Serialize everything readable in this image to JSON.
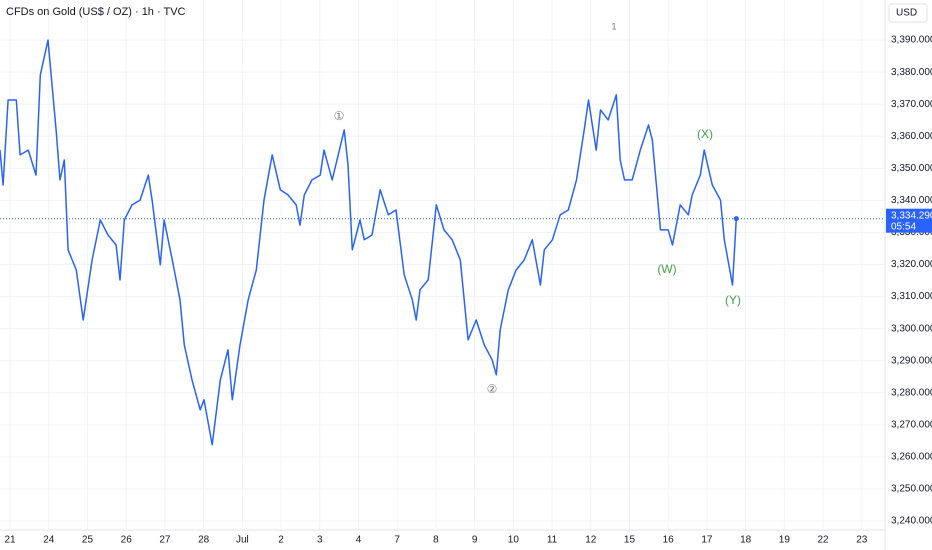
{
  "chart_data": {
    "type": "line",
    "title": "CFDs on Gold (US$ / OZ) · 1h · TVC",
    "currency": "USD",
    "color": "#2962ff",
    "annotation_color": "#43a047",
    "grid": true,
    "annotations": [
      "①",
      "1",
      "②",
      "(X)",
      "(W)",
      "(Y)"
    ],
    "last_price": {
      "value": 3334.29,
      "label": "3,334.290"
    },
    "countdown": "05:54",
    "xlim": [
      -0.26,
      22.6
    ],
    "ylim": [
      3237.2,
      3402.5
    ],
    "xticks": [
      {
        "value": 0,
        "label": "21"
      },
      {
        "value": 1,
        "label": "24"
      },
      {
        "value": 2,
        "label": "25"
      },
      {
        "value": 3,
        "label": "26"
      },
      {
        "value": 4,
        "label": "27"
      },
      {
        "value": 5,
        "label": "28"
      },
      {
        "value": 6,
        "label": "Jul"
      },
      {
        "value": 7,
        "label": "2"
      },
      {
        "value": 8,
        "label": "3"
      },
      {
        "value": 9,
        "label": "4"
      },
      {
        "value": 10,
        "label": "7"
      },
      {
        "value": 11,
        "label": "8"
      },
      {
        "value": 12,
        "label": "9"
      },
      {
        "value": 13,
        "label": "10"
      },
      {
        "value": 14,
        "label": "11"
      },
      {
        "value": 15,
        "label": "12"
      },
      {
        "value": 16,
        "label": "15"
      },
      {
        "value": 17,
        "label": "16"
      },
      {
        "value": 18,
        "label": "17"
      },
      {
        "value": 19,
        "label": "18"
      },
      {
        "value": 20,
        "label": "19"
      },
      {
        "value": 21,
        "label": "22"
      },
      {
        "value": 22,
        "label": "23"
      }
    ],
    "yticks": [
      {
        "value": 3240,
        "label": "3,240.000"
      },
      {
        "value": 3250,
        "label": "3,250.000"
      },
      {
        "value": 3260,
        "label": "3,260.000"
      },
      {
        "value": 3270,
        "label": "3,270.000"
      },
      {
        "value": 3280,
        "label": "3,280.000"
      },
      {
        "value": 3290,
        "label": "3,290.000"
      },
      {
        "value": 3300,
        "label": "3,300.000"
      },
      {
        "value": 3310,
        "label": "3,310.000"
      },
      {
        "value": 3320,
        "label": "3,320.000"
      },
      {
        "value": 3330,
        "label": "3,330.000"
      },
      {
        "value": 3340,
        "label": "3,340.000"
      },
      {
        "value": 3350,
        "label": "3,350.000"
      },
      {
        "value": 3360,
        "label": "3,360.000"
      },
      {
        "value": 3370,
        "label": "3,370.000"
      },
      {
        "value": 3380,
        "label": "3,380.000"
      },
      {
        "value": 3390,
        "label": "3,390.000"
      }
    ],
    "x": [
      -0.26,
      -0.18,
      -0.05,
      0.16,
      0.26,
      0.47,
      0.67,
      0.78,
      0.98,
      1.19,
      1.29,
      1.4,
      1.5,
      1.71,
      1.89,
      2.12,
      2.33,
      2.53,
      2.74,
      2.84,
      2.95,
      3.15,
      3.36,
      3.57,
      3.67,
      3.88,
      3.98,
      4.19,
      4.39,
      4.5,
      4.7,
      4.91,
      5.01,
      5.22,
      5.43,
      5.63,
      5.74,
      5.94,
      6.15,
      6.36,
      6.56,
      6.77,
      6.98,
      7.18,
      7.39,
      7.49,
      7.6,
      7.8,
      8.01,
      8.11,
      8.32,
      8.63,
      8.73,
      8.84,
      9.04,
      9.15,
      9.35,
      9.56,
      9.77,
      9.97,
      10.18,
      10.39,
      10.49,
      10.59,
      10.8,
      11.01,
      11.21,
      11.42,
      11.63,
      11.83,
      12.04,
      12.25,
      12.45,
      12.56,
      12.66,
      12.87,
      13.07,
      13.28,
      13.49,
      13.7,
      13.8,
      14.01,
      14.21,
      14.42,
      14.63,
      14.83,
      14.94,
      15.14,
      15.25,
      15.45,
      15.66,
      15.76,
      15.87,
      16.07,
      16.28,
      16.49,
      16.59,
      16.8,
      17.0,
      17.11,
      17.31,
      17.52,
      17.62,
      17.83,
      17.93,
      18.14,
      18.35,
      18.45,
      18.66,
      18.76
    ],
    "values": [
      3355.7,
      3344.8,
      3371.3,
      3371.3,
      3354.2,
      3355.7,
      3347.9,
      3379.1,
      3390.0,
      3362.0,
      3346.4,
      3352.6,
      3324.6,
      3318.3,
      3302.7,
      3321.4,
      3333.9,
      3329.2,
      3326.1,
      3315.2,
      3333.9,
      3338.6,
      3340.1,
      3347.9,
      3340.1,
      3319.9,
      3333.9,
      3321.4,
      3309.0,
      3294.9,
      3284.0,
      3274.7,
      3277.8,
      3263.8,
      3284.0,
      3293.4,
      3277.8,
      3294.9,
      3309.0,
      3318.3,
      3340.1,
      3354.2,
      3343.3,
      3341.7,
      3338.6,
      3332.3,
      3341.7,
      3346.4,
      3347.9,
      3355.7,
      3346.4,
      3362.0,
      3351.1,
      3324.6,
      3333.9,
      3327.7,
      3329.2,
      3343.3,
      3335.5,
      3337.0,
      3316.8,
      3309.0,
      3302.7,
      3312.1,
      3315.2,
      3338.6,
      3330.8,
      3327.7,
      3321.4,
      3296.5,
      3302.7,
      3294.9,
      3290.3,
      3285.6,
      3299.6,
      3312.1,
      3318.3,
      3321.4,
      3327.7,
      3313.6,
      3324.6,
      3327.7,
      3335.5,
      3337.0,
      3346.4,
      3362.0,
      3371.3,
      3355.7,
      3368.2,
      3365.1,
      3372.9,
      3352.6,
      3346.4,
      3346.4,
      3355.7,
      3363.5,
      3358.8,
      3330.8,
      3330.8,
      3326.1,
      3338.6,
      3335.5,
      3341.7,
      3347.9,
      3355.7,
      3344.8,
      3340.1,
      3327.7,
      3313.6,
      3334.3
    ]
  }
}
